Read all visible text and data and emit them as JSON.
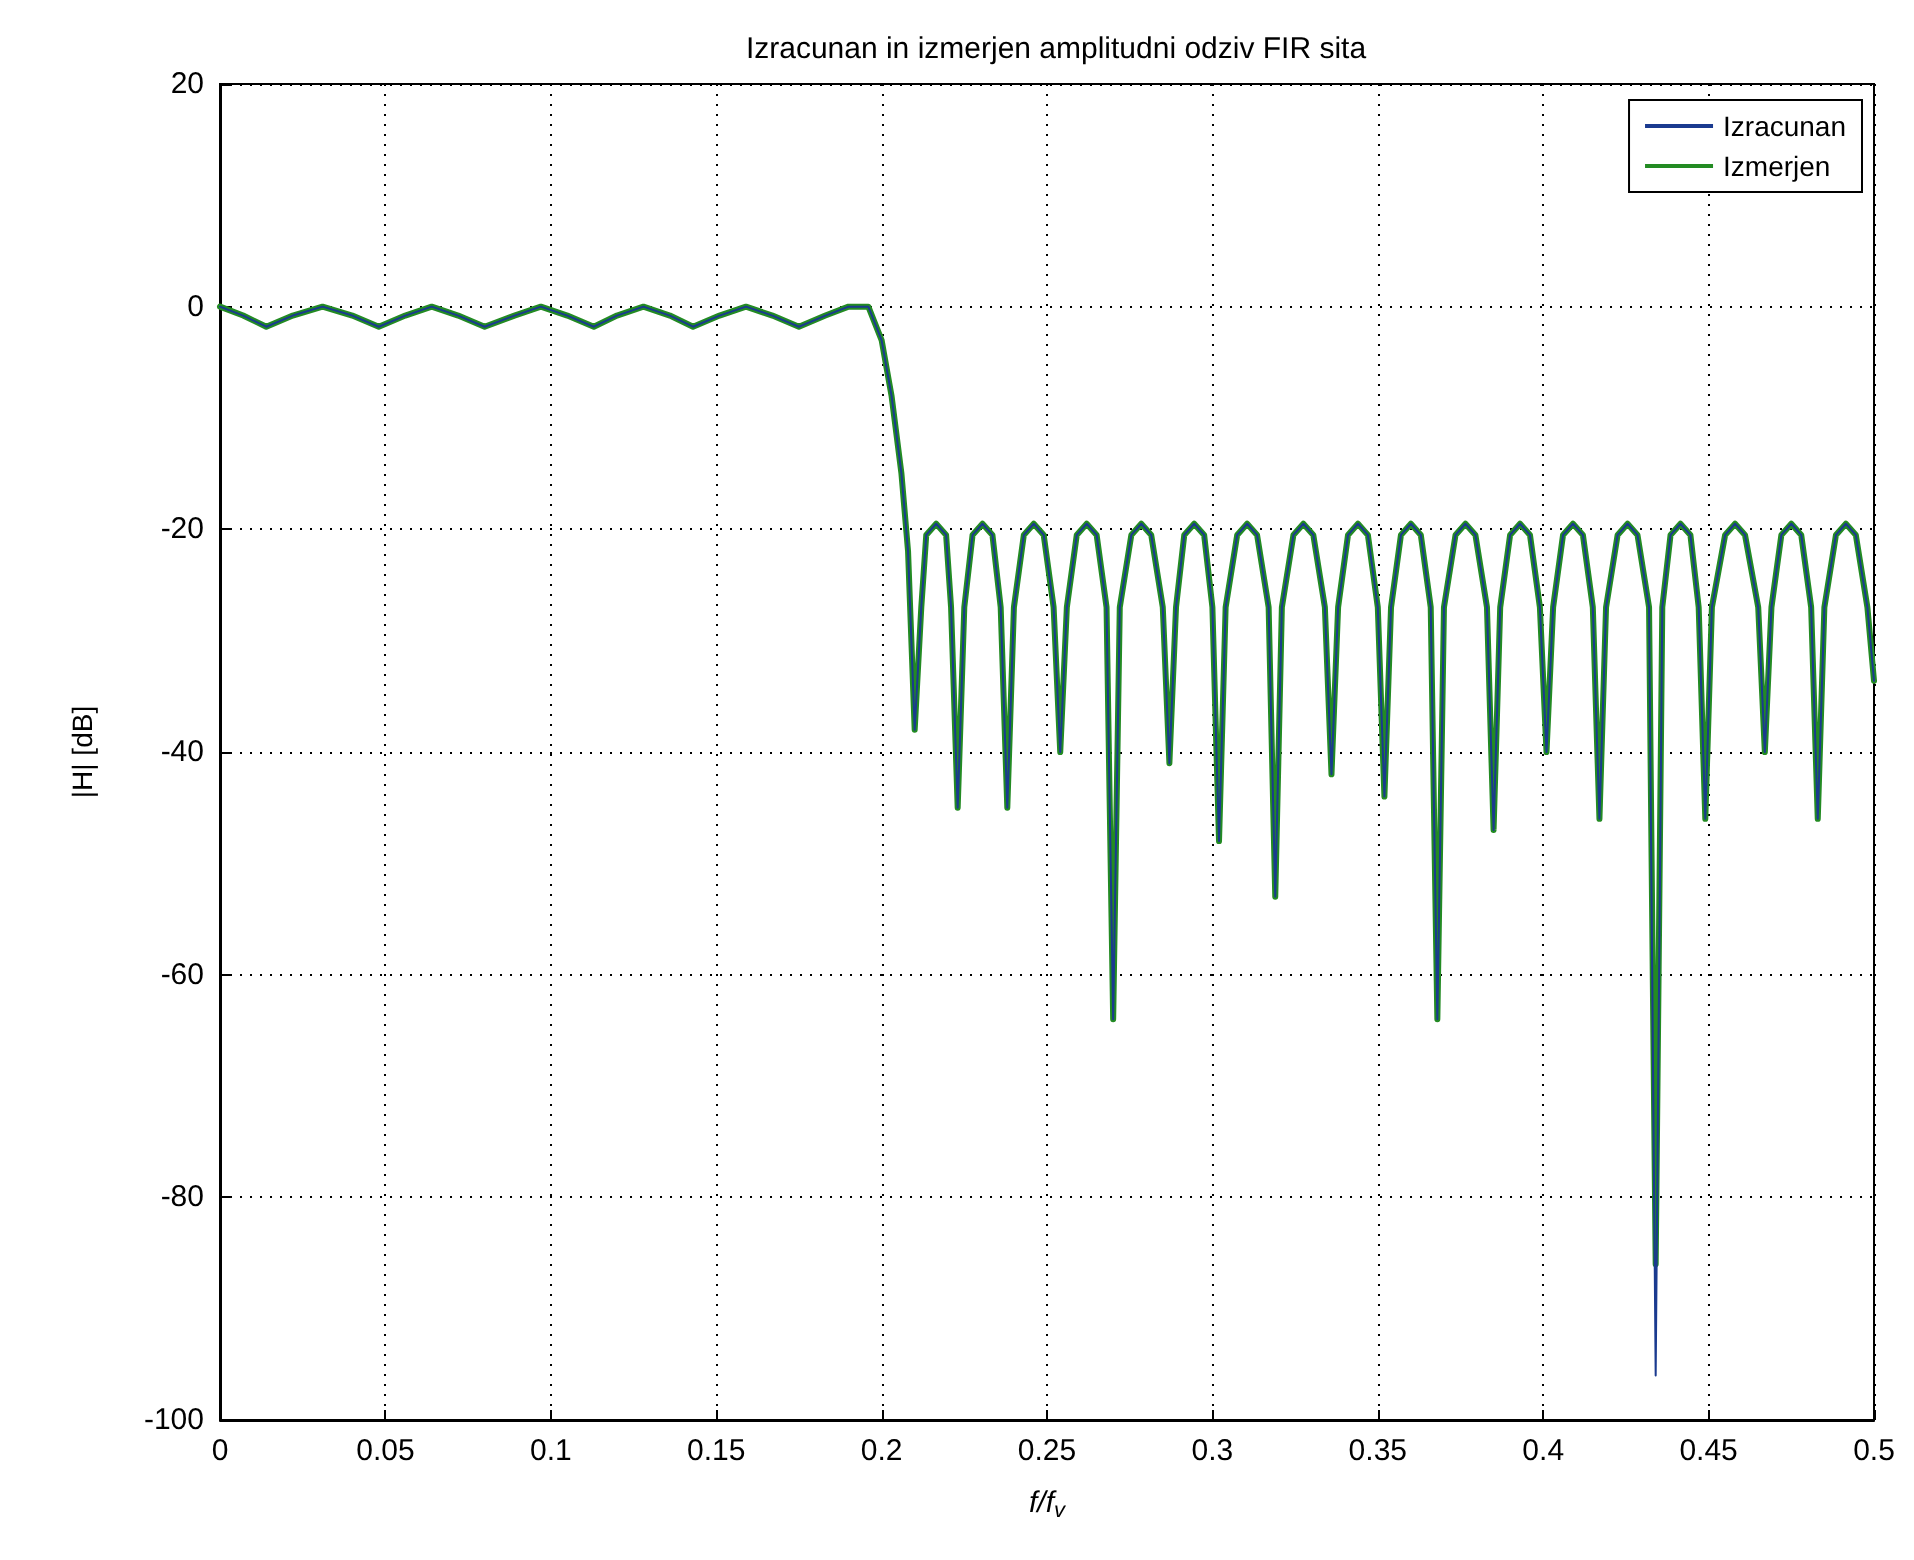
{
  "chart_data": {
    "type": "line",
    "title": "Izracunan in izmerjen amplitudni odziv FIR sita",
    "xlabel": "f/f$_{v}$",
    "ylabel": "|H| [dB]",
    "x": [
      0,
      0.007,
      0.014,
      0.022,
      0.031,
      0.04,
      0.048,
      0.056,
      0.064,
      0.072,
      0.08,
      0.089,
      0.097,
      0.105,
      0.113,
      0.12,
      0.128,
      0.136,
      0.143,
      0.151,
      0.159,
      0.167,
      0.175,
      0.183,
      0.19,
      0.196,
      0.2,
      0.203,
      0.206,
      0.208,
      0.21,
      0.212,
      0.2135,
      0.2165,
      0.2195,
      0.221,
      0.223,
      0.225,
      0.2275,
      0.2305,
      0.2335,
      0.236,
      0.238,
      0.24,
      0.243,
      0.246,
      0.249,
      0.252,
      0.254,
      0.256,
      0.259,
      0.262,
      0.265,
      0.268,
      0.27,
      0.272,
      0.2755,
      0.2785,
      0.2815,
      0.285,
      0.287,
      0.289,
      0.2915,
      0.2945,
      0.2975,
      0.3,
      0.302,
      0.304,
      0.3075,
      0.3105,
      0.3135,
      0.317,
      0.319,
      0.321,
      0.3245,
      0.3275,
      0.3305,
      0.334,
      0.336,
      0.338,
      0.341,
      0.344,
      0.347,
      0.35,
      0.352,
      0.354,
      0.357,
      0.36,
      0.363,
      0.366,
      0.368,
      0.37,
      0.3735,
      0.3765,
      0.3795,
      0.383,
      0.385,
      0.387,
      0.39,
      0.393,
      0.396,
      0.399,
      0.401,
      0.403,
      0.406,
      0.409,
      0.412,
      0.415,
      0.417,
      0.419,
      0.4225,
      0.4255,
      0.4285,
      0.432,
      0.434,
      0.436,
      0.4385,
      0.4415,
      0.4445,
      0.447,
      0.449,
      0.451,
      0.455,
      0.458,
      0.461,
      0.465,
      0.467,
      0.469,
      0.472,
      0.475,
      0.478,
      0.481,
      0.483,
      0.485,
      0.4885,
      0.4915,
      0.4945,
      0.498,
      0.5
    ],
    "series": [
      {
        "name": "Izracunan",
        "color": "#1a3a8f",
        "values": [
          0,
          -0.8,
          -1.8,
          -0.8,
          0,
          -0.8,
          -1.8,
          -0.8,
          0,
          -0.8,
          -1.8,
          -0.8,
          0,
          -0.8,
          -1.8,
          -0.8,
          0,
          -0.8,
          -1.8,
          -0.8,
          0,
          -0.8,
          -1.8,
          -0.8,
          0,
          0,
          -3,
          -8,
          -15,
          -22,
          -38,
          -27,
          -20.5,
          -19.5,
          -20.5,
          -27,
          -45,
          -27,
          -20.5,
          -19.5,
          -20.5,
          -27,
          -45,
          -27,
          -20.5,
          -19.5,
          -20.5,
          -27,
          -40,
          -27,
          -20.5,
          -19.5,
          -20.5,
          -27,
          -64,
          -27,
          -20.5,
          -19.5,
          -20.5,
          -27,
          -41,
          -27,
          -20.5,
          -19.5,
          -20.5,
          -27,
          -48,
          -27,
          -20.5,
          -19.5,
          -20.5,
          -27,
          -53,
          -27,
          -20.5,
          -19.5,
          -20.5,
          -27,
          -42,
          -27,
          -20.5,
          -19.5,
          -20.5,
          -27,
          -44,
          -27,
          -20.5,
          -19.5,
          -20.5,
          -27,
          -64,
          -27,
          -20.5,
          -19.5,
          -20.5,
          -27,
          -47,
          -27,
          -20.5,
          -19.5,
          -20.5,
          -27,
          -40,
          -27,
          -20.5,
          -19.5,
          -20.5,
          -27,
          -46,
          -27,
          -20.5,
          -19.5,
          -20.5,
          -27,
          -96,
          -27,
          -20.5,
          -19.5,
          -20.5,
          -27,
          -46,
          -27,
          -20.5,
          -19.5,
          -20.5,
          -27,
          -40,
          -27,
          -20.5,
          -19.5,
          -20.5,
          -27,
          -46,
          -27,
          -20.5,
          -19.5,
          -20.5,
          -27,
          -33.6
        ]
      },
      {
        "name": "Izmerjen",
        "color": "#238b23",
        "values": [
          0,
          -0.8,
          -1.8,
          -0.8,
          0,
          -0.8,
          -1.8,
          -0.8,
          0,
          -0.8,
          -1.8,
          -0.8,
          0,
          -0.8,
          -1.8,
          -0.8,
          0,
          -0.8,
          -1.8,
          -0.8,
          0,
          -0.8,
          -1.8,
          -0.8,
          0,
          0,
          -3,
          -8,
          -15,
          -22,
          -38,
          -27,
          -20.5,
          -19.5,
          -20.5,
          -27,
          -45,
          -27,
          -20.5,
          -19.5,
          -20.5,
          -27,
          -45,
          -27,
          -20.5,
          -19.5,
          -20.5,
          -27,
          -40,
          -27,
          -20.5,
          -19.5,
          -20.5,
          -27,
          -64,
          -27,
          -20.5,
          -19.5,
          -20.5,
          -27,
          -41,
          -27,
          -20.5,
          -19.5,
          -20.5,
          -27,
          -48,
          -27,
          -20.5,
          -19.5,
          -20.5,
          -27,
          -53,
          -27,
          -20.5,
          -19.5,
          -20.5,
          -27,
          -42,
          -27,
          -20.5,
          -19.5,
          -20.5,
          -27,
          -44,
          -27,
          -20.5,
          -19.5,
          -20.5,
          -27,
          -64,
          -27,
          -20.5,
          -19.5,
          -20.5,
          -27,
          -47,
          -27,
          -20.5,
          -19.5,
          -20.5,
          -27,
          -40,
          -27,
          -20.5,
          -19.5,
          -20.5,
          -27,
          -46,
          -27,
          -20.5,
          -19.5,
          -20.5,
          -27,
          -86,
          -27,
          -20.5,
          -19.5,
          -20.5,
          -27,
          -46,
          -27,
          -20.5,
          -19.5,
          -20.5,
          -27,
          -40,
          -27,
          -20.5,
          -19.5,
          -20.5,
          -27,
          -46,
          -27,
          -20.5,
          -19.5,
          -20.5,
          -27,
          -33.6
        ]
      }
    ],
    "xlim": [
      0,
      0.5
    ],
    "xticks": [
      0,
      0.05,
      0.1,
      0.15,
      0.2,
      0.25,
      0.3,
      0.35,
      0.4,
      0.45,
      0.5
    ],
    "ylim": [
      -100,
      20
    ],
    "yticks": [
      -100,
      -80,
      -60,
      -40,
      -20,
      0,
      20
    ],
    "grid": true,
    "legend": "top right",
    "marker": "none",
    "line_style": "solid"
  }
}
